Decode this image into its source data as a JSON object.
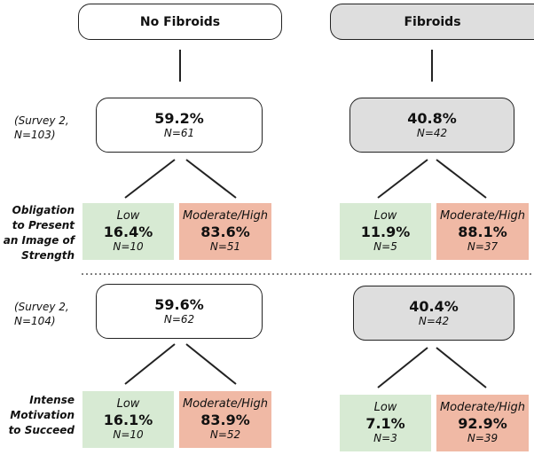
{
  "columns": [
    {
      "title": "No Fibroids"
    },
    {
      "title": "Fibroids"
    }
  ],
  "sections": [
    {
      "survey_label": "(Survey 2,\nN=103)",
      "measure_label": "Obligation\nto Present\nan Image of\nStrength",
      "groups": [
        {
          "pct": "59.2%",
          "n": "N=61",
          "low": {
            "label": "Low",
            "pct": "16.4%",
            "n": "N=10"
          },
          "high": {
            "label": "Moderate/High",
            "pct": "83.6%",
            "n": "N=51"
          }
        },
        {
          "pct": "40.8%",
          "n": "N=42",
          "low": {
            "label": "Low",
            "pct": "11.9%",
            "n": "N=5"
          },
          "high": {
            "label": "Moderate/High",
            "pct": "88.1%",
            "n": "N=37"
          }
        }
      ]
    },
    {
      "survey_label": "(Survey 2,\nN=104)",
      "measure_label": "Intense\nMotivation\nto Succeed",
      "groups": [
        {
          "pct": "59.6%",
          "n": "N=62",
          "low": {
            "label": "Low",
            "pct": "16.1%",
            "n": "N=10"
          },
          "high": {
            "label": "Moderate/High",
            "pct": "83.9%",
            "n": "N=52"
          }
        },
        {
          "pct": "40.4%",
          "n": "N=42",
          "low": {
            "label": "Low",
            "pct": "7.1%",
            "n": "N=3"
          },
          "high": {
            "label": "Moderate/High",
            "pct": "92.9%",
            "n": "N=39"
          }
        }
      ]
    }
  ]
}
